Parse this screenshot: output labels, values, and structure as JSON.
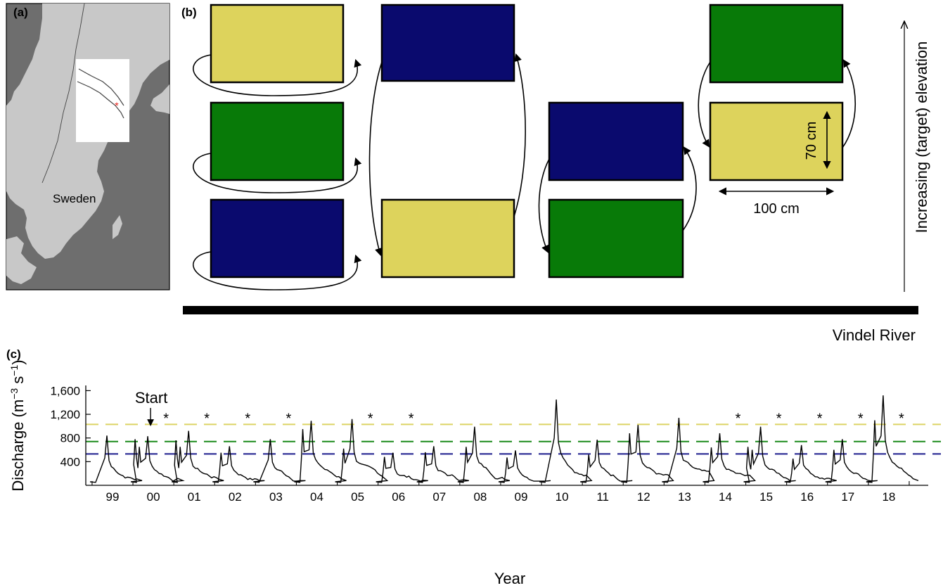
{
  "panels": {
    "a": {
      "label": "(a)",
      "country_label": "Sweden",
      "colors": {
        "sea": "#6e6e6e",
        "land": "#c8c8c8",
        "highlight": "#ffffff",
        "marker": "#e8211a"
      }
    },
    "b": {
      "label": "(b)",
      "dim_height": "70 cm",
      "dim_width": "100 cm",
      "axis_label": "Increasing (target) elevation",
      "river_label": "Vindel River",
      "colors": {
        "low": "#0a0a6e",
        "mid": "#087a08",
        "high": "#ddd35c"
      }
    },
    "c": {
      "label": "(c)"
    }
  },
  "chart_data": {
    "type": "line",
    "xlabel": "Year",
    "ylabel": "Discharge (m−3 s−1)",
    "ylim": [
      0,
      1700
    ],
    "y_ticks": [
      400,
      800,
      1200,
      1600
    ],
    "y_tick_labels": [
      "400",
      "800",
      "1,200",
      "1,600"
    ],
    "x_ticks": [
      "99",
      "00",
      "01",
      "02",
      "03",
      "04",
      "05",
      "06",
      "07",
      "08",
      "09",
      "10",
      "11",
      "12",
      "13",
      "14",
      "15",
      "16",
      "17",
      "18"
    ],
    "start_label": "Start",
    "start_year": "00",
    "star_symbol": "*",
    "star_years": [
      "00",
      "01",
      "02",
      "03",
      "05",
      "06",
      "14",
      "15",
      "16",
      "17",
      "18"
    ],
    "reference_lines": [
      {
        "value": 1030,
        "color": "#dcd364"
      },
      {
        "value": 740,
        "color": "#1a8a1a"
      },
      {
        "value": 530,
        "color": "#1a1a8c"
      }
    ],
    "annual_peaks": [
      {
        "year": "99",
        "peak": 840,
        "secondary": []
      },
      {
        "year": "00",
        "peak": 830,
        "secondary": [
          780,
          650
        ]
      },
      {
        "year": "01",
        "peak": 920,
        "secondary": [
          760,
          650
        ]
      },
      {
        "year": "02",
        "peak": 660,
        "secondary": [
          550
        ]
      },
      {
        "year": "03",
        "peak": 780,
        "secondary": []
      },
      {
        "year": "04",
        "peak": 1090,
        "secondary": [
          950
        ]
      },
      {
        "year": "05",
        "peak": 1120,
        "secondary": [
          620
        ]
      },
      {
        "year": "06",
        "peak": 550,
        "secondary": [
          480
        ]
      },
      {
        "year": "07",
        "peak": 660,
        "secondary": [
          560
        ]
      },
      {
        "year": "08",
        "peak": 990,
        "secondary": [
          650
        ]
      },
      {
        "year": "09",
        "peak": 590,
        "secondary": [
          470
        ]
      },
      {
        "year": "10",
        "peak": 1450,
        "secondary": []
      },
      {
        "year": "11",
        "peak": 770,
        "secondary": [
          520
        ]
      },
      {
        "year": "12",
        "peak": 1020,
        "secondary": [
          880
        ]
      },
      {
        "year": "13",
        "peak": 1140,
        "secondary": []
      },
      {
        "year": "14",
        "peak": 880,
        "secondary": [
          640
        ]
      },
      {
        "year": "15",
        "peak": 990,
        "secondary": [
          650,
          600
        ]
      },
      {
        "year": "16",
        "peak": 680,
        "secondary": [
          450
        ]
      },
      {
        "year": "17",
        "peak": 780,
        "secondary": [
          600
        ]
      },
      {
        "year": "18",
        "peak": 1520,
        "secondary": [
          1100
        ]
      }
    ],
    "baseline_discharge": 50
  }
}
